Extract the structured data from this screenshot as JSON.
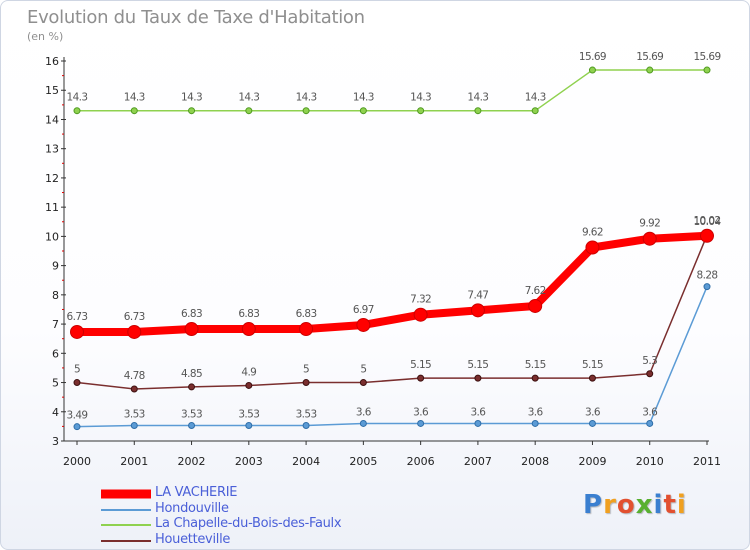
{
  "title": "Evolution du Taux de Taxe d'Habitation",
  "unit": "(en %)",
  "logo": {
    "letters": [
      "P",
      "r",
      "o",
      "x",
      "i",
      "t",
      "i"
    ],
    "colors": [
      "#3a7fd0",
      "#f0a020",
      "#e25030",
      "#58b030",
      "#3a7fd0",
      "#e25030",
      "#f0a020"
    ]
  },
  "chart_data": {
    "type": "line",
    "x": [
      "2000",
      "2001",
      "2002",
      "2003",
      "2004",
      "2005",
      "2006",
      "2007",
      "2008",
      "2009",
      "2010",
      "2011"
    ],
    "ylim": [
      3,
      16
    ],
    "yticks": [
      "3",
      "4",
      "5",
      "6",
      "7",
      "8",
      "9",
      "10",
      "11",
      "12",
      "13",
      "14",
      "15",
      "16"
    ],
    "grid": false,
    "legend_position": "bottom-left",
    "series": [
      {
        "name": "LA VACHERIE",
        "color": "#ff0000",
        "values": [
          6.73,
          6.73,
          6.83,
          6.83,
          6.83,
          6.97,
          7.32,
          7.47,
          7.62,
          9.62,
          9.92,
          10.02
        ],
        "labels": [
          "6.73",
          "6.73",
          "6.83",
          "6.83",
          "6.83",
          "6.97",
          "7.32",
          "7.47",
          "7.62",
          "9.62",
          "9.92",
          "10.02"
        ]
      },
      {
        "name": "Hondouville",
        "color": "#5b9bd5",
        "values": [
          3.49,
          3.53,
          3.53,
          3.53,
          3.53,
          3.6,
          3.6,
          3.6,
          3.6,
          3.6,
          3.6,
          8.28
        ],
        "labels": [
          "3.49",
          "3.53",
          "3.53",
          "3.53",
          "3.53",
          "3.6",
          "3.6",
          "3.6",
          "3.6",
          "3.6",
          "3.6",
          "8.28"
        ]
      },
      {
        "name": "La Chapelle-du-Bois-des-Faulx",
        "color": "#8fd14f",
        "values": [
          14.3,
          14.3,
          14.3,
          14.3,
          14.3,
          14.3,
          14.3,
          14.3,
          14.3,
          15.69,
          15.69,
          15.69
        ],
        "labels": [
          "14.3",
          "14.3",
          "14.3",
          "14.3",
          "14.3",
          "14.3",
          "14.3",
          "14.3",
          "14.3",
          "15.69",
          "15.69",
          "15.69"
        ]
      },
      {
        "name": "Houetteville",
        "color": "#7a2e2e",
        "values": [
          5,
          4.78,
          4.85,
          4.9,
          5,
          5,
          5.15,
          5.15,
          5.15,
          5.15,
          5.3,
          10.04
        ],
        "labels": [
          "5",
          "4.78",
          "4.85",
          "4.9",
          "5",
          "5",
          "5.15",
          "5.15",
          "5.15",
          "5.15",
          "5.3",
          "10.04"
        ]
      }
    ]
  }
}
